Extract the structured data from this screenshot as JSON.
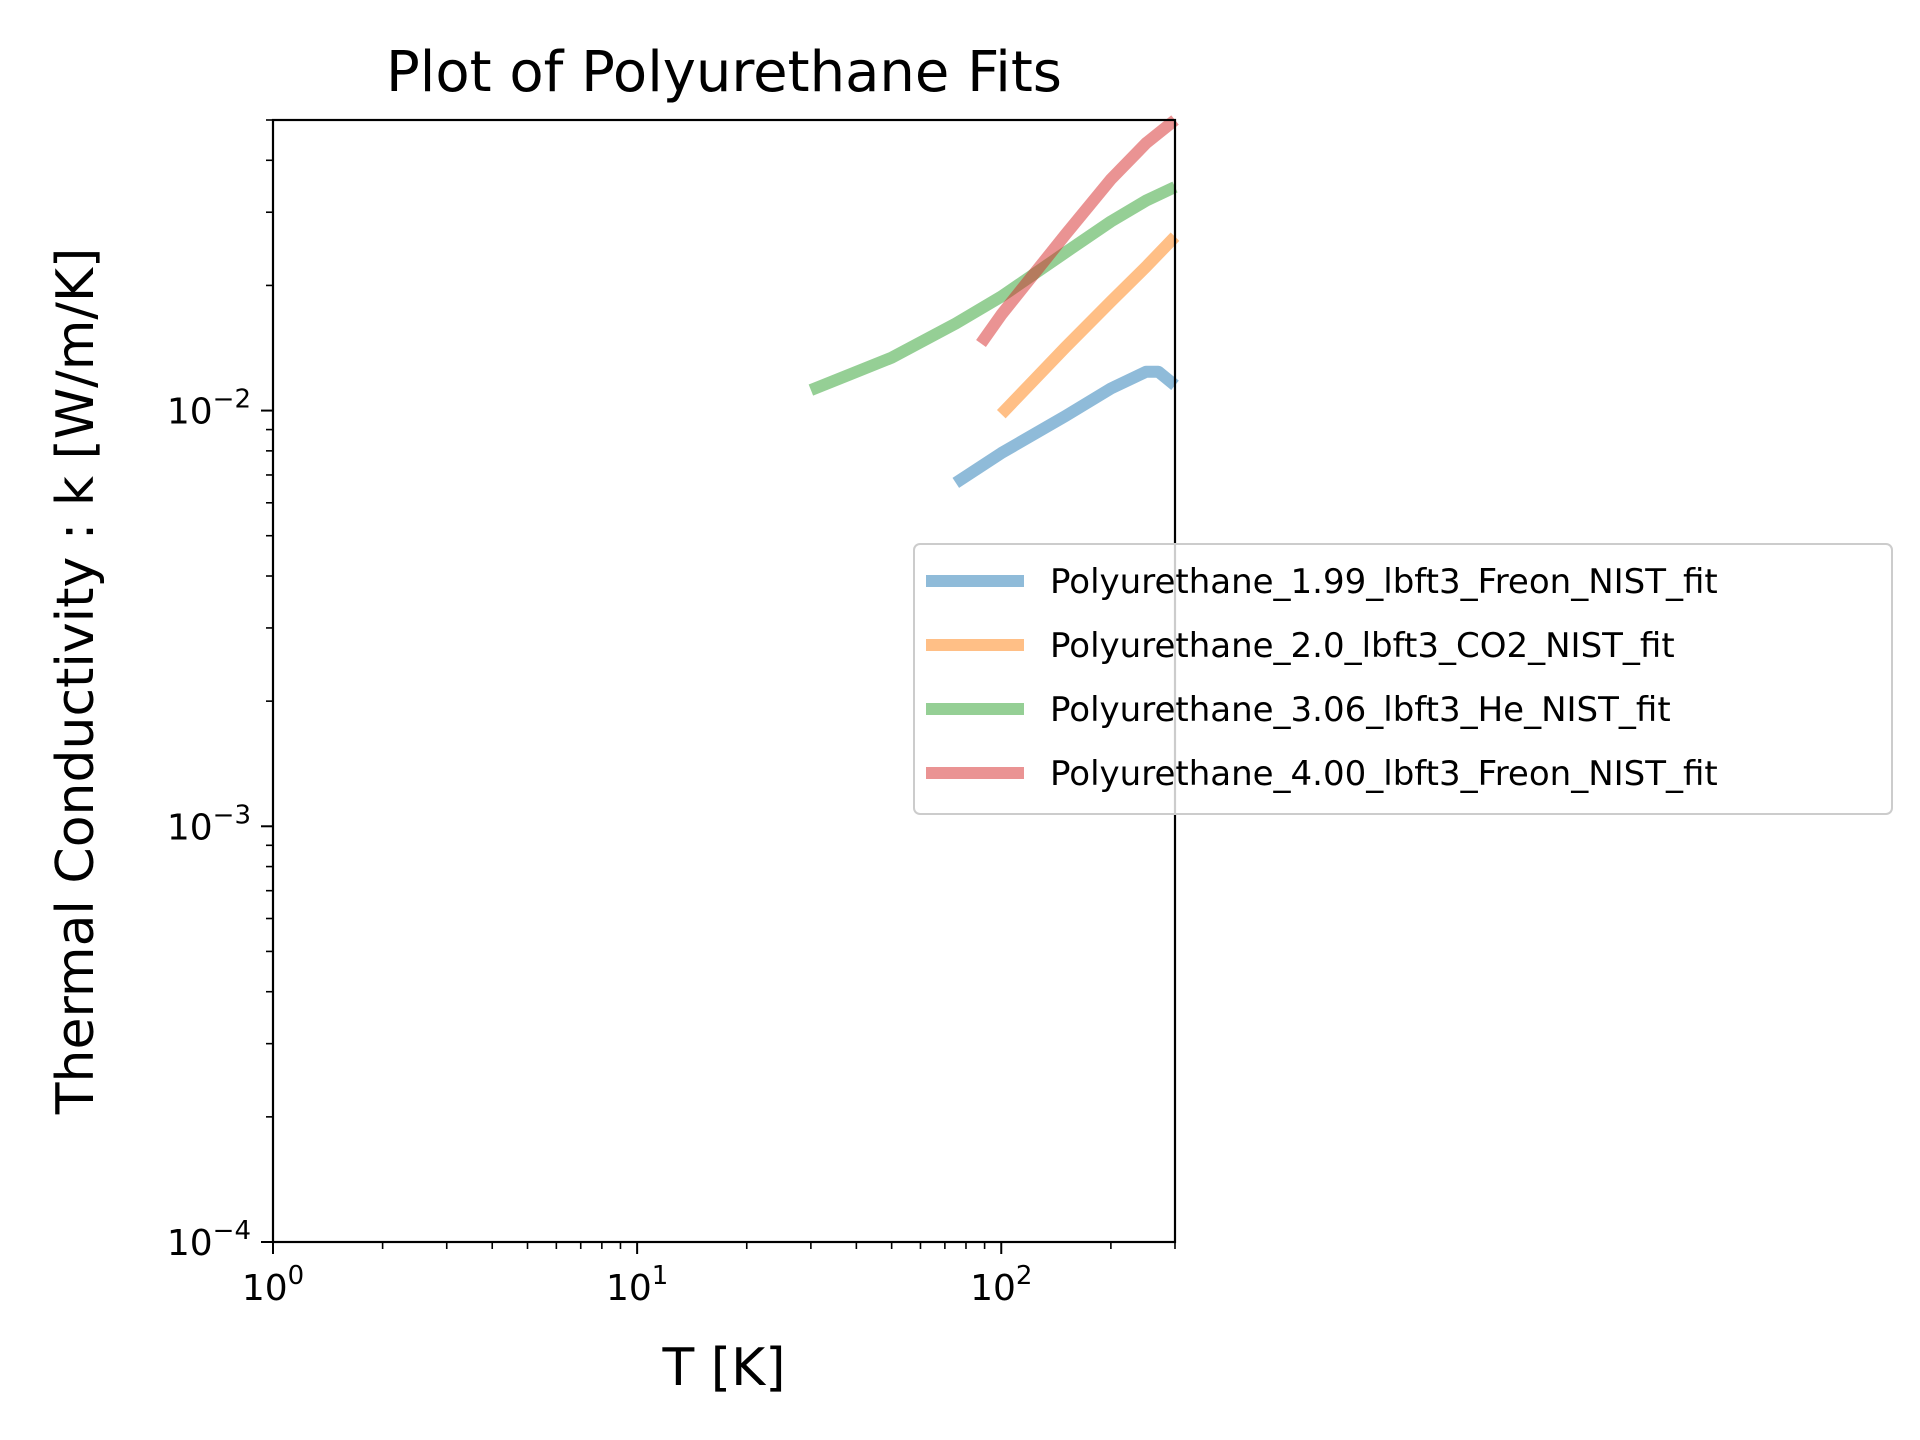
{
  "chart_data": {
    "type": "line",
    "title": "Plot of Polyurethane Fits",
    "xlabel": "T [K]",
    "ylabel": "Thermal Conductivity : k [W/m/K]",
    "xscale": "log",
    "yscale": "log",
    "xlim": [
      1,
      300
    ],
    "ylim": [
      0.0001,
      0.05
    ],
    "x_ticks": [
      {
        "value": 1,
        "base": "10",
        "exp": "0"
      },
      {
        "value": 10,
        "base": "10",
        "exp": "1"
      },
      {
        "value": 100,
        "base": "10",
        "exp": "2"
      }
    ],
    "y_ticks": [
      {
        "value": 0.0001,
        "base": "10",
        "exp": "−4"
      },
      {
        "value": 0.001,
        "base": "10",
        "exp": "−3"
      },
      {
        "value": 0.01,
        "base": "10",
        "exp": "−2"
      }
    ],
    "grid": false,
    "legend_position": "center-right",
    "series": [
      {
        "name": "Polyurethane_1.99_lbft3_Freon_NIST_fit",
        "color": "#1f77b4",
        "x": [
          75,
          100,
          150,
          200,
          250,
          270,
          300
        ],
        "y": [
          0.0067,
          0.0079,
          0.0097,
          0.0113,
          0.0124,
          0.0124,
          0.0115
        ]
      },
      {
        "name": "Polyurethane_2.0_lbft3_CO2_NIST_fit",
        "color": "#ff7f0e",
        "x": [
          100,
          150,
          200,
          250,
          300
        ],
        "y": [
          0.0098,
          0.0142,
          0.0183,
          0.0222,
          0.0262
        ]
      },
      {
        "name": "Polyurethane_3.06_lbft3_He_NIST_fit",
        "color": "#2ca02c",
        "x": [
          30,
          50,
          75,
          100,
          150,
          200,
          250,
          300
        ],
        "y": [
          0.0112,
          0.0134,
          0.0162,
          0.0188,
          0.024,
          0.0285,
          0.032,
          0.0345
        ]
      },
      {
        "name": "Polyurethane_4.00_lbft3_Freon_NIST_fit",
        "color": "#d62728",
        "x": [
          88,
          100,
          150,
          200,
          250,
          300
        ],
        "y": [
          0.0145,
          0.017,
          0.0265,
          0.036,
          0.044,
          0.05
        ]
      }
    ]
  }
}
